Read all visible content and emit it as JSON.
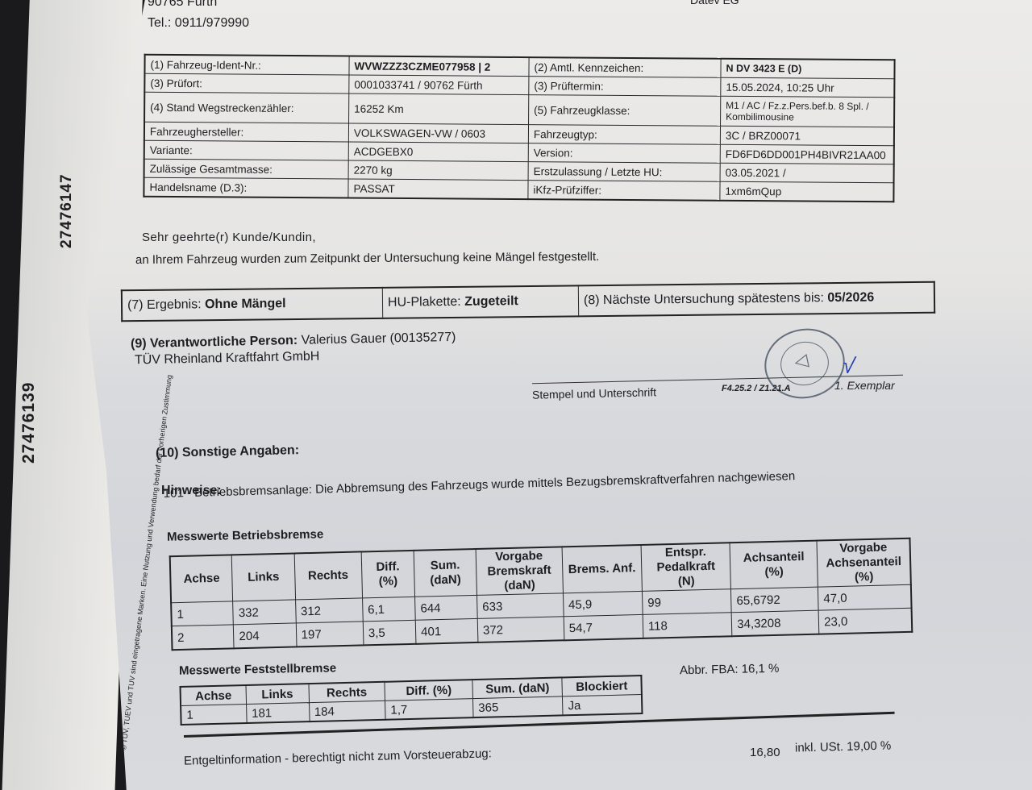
{
  "header": {
    "city": "90765 Fürth",
    "phone": "Tel.: 0911/979990",
    "bank": "Datev EG"
  },
  "side": {
    "number_front": "27476147",
    "number_back": "27476139",
    "legal": "© TÜV, TUEV und TUV sind eingetragene Marken. Eine Nutzung und Verwendung bedarf der vorherigen Zustimmung"
  },
  "vehicle": {
    "rows": [
      [
        "(1) Fahrzeug-Ident-Nr.:",
        "WVWZZZ3CZME077958 | 2",
        "(2) Amtl. Kennzeichen:",
        "N DV 3423 E (D)"
      ],
      [
        "(3) Prüfort:",
        "0001033741 / 90762 Fürth",
        "(3) Prüftermin:",
        "15.05.2024, 10:25 Uhr"
      ],
      [
        "(4) Stand Wegstreckenzähler:",
        "16252 Km",
        "(5) Fahrzeugklasse:",
        "M1 / AC / Fz.z.Pers.bef.b. 8 Spl. / Kombilimousine"
      ],
      [
        "Fahrzeughersteller:",
        "VOLKSWAGEN-VW / 0603",
        "Fahrzeugtyp:",
        "3C / BRZ00071"
      ],
      [
        "Variante:",
        "ACDGEBX0",
        "Version:",
        "FD6FD6DD001PH4BIVR21AA00"
      ],
      [
        "Zulässige Gesamtmasse:",
        "2270 kg",
        "Erstzulassung / Letzte HU:",
        "03.05.2021 /"
      ],
      [
        "Handelsname (D.3):",
        "PASSAT",
        "iKfz-Prüfziffer:",
        "1xm6mQup"
      ]
    ]
  },
  "letter": {
    "greeting": "Sehr geehrte(r) Kunde/Kundin,",
    "text": "an Ihrem Fahrzeug wurden zum Zeitpunkt der Untersuchung keine Mängel festgestellt."
  },
  "result": {
    "label": "(7) Ergebnis:",
    "value": "Ohne Mängel",
    "plakette_label": "HU-Plakette:",
    "plakette_value": "Zugeteilt",
    "next_label": "(8) Nächste Untersuchung spätestens bis:",
    "next_value": "05/2026"
  },
  "person": {
    "label": "(9) Verantwortliche Person:",
    "name": "Valerius Gauer (00135277)",
    "org": "TÜV Rheinland Kraftfahrt GmbH",
    "stamp_caption": "Stempel und Unterschrift",
    "form": "F4.25.2 / Z1.21.A",
    "copy": "1. Exemplar",
    "stamp_text": "TÜV Rheinland Group 0135277"
  },
  "other": {
    "title": "(10) Sonstige Angaben:",
    "hints_label": "Hinweise:",
    "hint": "101 - Betriebsbremsanlage: Die Abbremsung des Fahrzeugs wurde mittels Bezugsbremskraftverfahren nachgewiesen"
  },
  "service_brake": {
    "title": "Messwerte Betriebsbremse",
    "headers": [
      "Achse",
      "Links",
      "Rechts",
      "Diff. (%)",
      "Sum. (daN)",
      "Vorgabe Bremskraft (daN)",
      "Brems. Anf.",
      "Entspr. Pedalkraft (N)",
      "Achsanteil (%)",
      "Vorgabe Achsenanteil (%)"
    ],
    "rows": [
      [
        "1",
        "332",
        "312",
        "6,1",
        "644",
        "633",
        "45,9",
        "99",
        "65,6792",
        "47,0"
      ],
      [
        "2",
        "204",
        "197",
        "3,5",
        "401",
        "372",
        "54,7",
        "118",
        "34,3208",
        "23,0"
      ]
    ]
  },
  "parking_brake": {
    "title": "Messwerte Feststellbremse",
    "headers": [
      "Achse",
      "Links",
      "Rechts",
      "Diff. (%)",
      "Sum. (daN)",
      "Blockiert"
    ],
    "rows": [
      [
        "1",
        "181",
        "184",
        "1,7",
        "365",
        "Ja"
      ]
    ],
    "fba": "Abbr. FBA: 16,1 %"
  },
  "fee": {
    "label": "Entgeltinformation - berechtigt nicht zum Vorsteuerabzug:",
    "amount": "16,80",
    "tax": "inkl. USt. 19,00 %"
  }
}
